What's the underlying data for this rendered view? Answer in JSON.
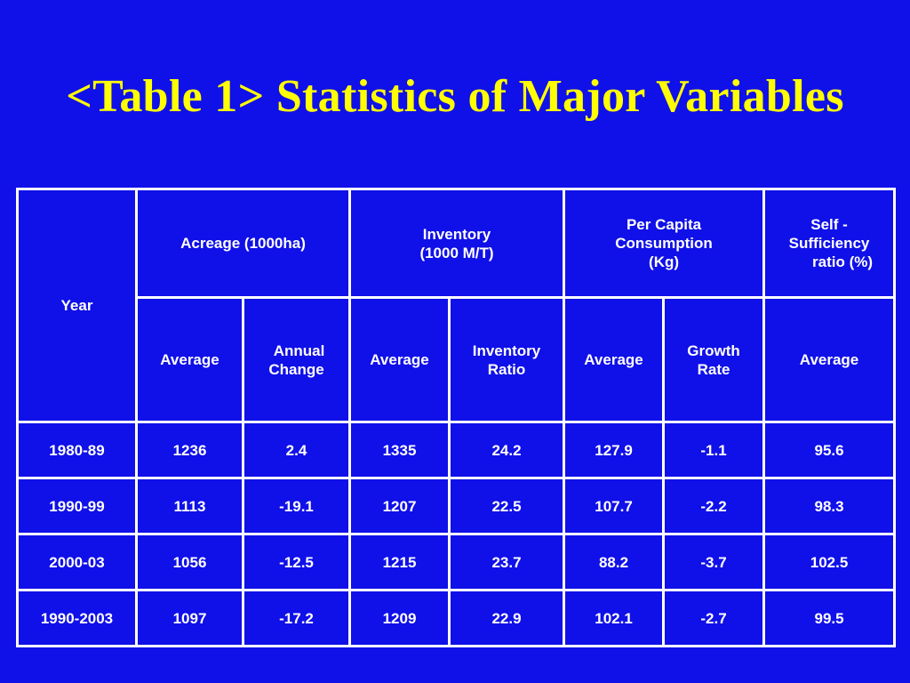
{
  "title": "<Table 1> Statistics of Major Variables",
  "table": {
    "year_header": "Year",
    "groups": {
      "acreage": "Acreage (1000ha)",
      "inventory": [
        "Inventory",
        "(1000 M/T)"
      ],
      "per_capita": [
        "Per Capita",
        "Consumption",
        "(Kg)"
      ],
      "self_sufficiency": [
        "Self -",
        "Sufficiency",
        "ratio (%)"
      ]
    },
    "subheaders": {
      "acreage_average": "Average",
      "annual_change": [
        "Annual",
        "Change"
      ],
      "inventory_average": "Average",
      "inventory_ratio": [
        "Inventory",
        "Ratio"
      ],
      "consumption_average": "Average",
      "growth_rate": [
        "Growth",
        "Rate"
      ],
      "self_sufficiency_average": "Average"
    },
    "rows": [
      [
        "1980-89",
        "1236",
        "2.4",
        "1335",
        "24.2",
        "127.9",
        "-1.1",
        "95.6"
      ],
      [
        "1990-99",
        "1113",
        "-19.1",
        "1207",
        "22.5",
        "107.7",
        "-2.2",
        "98.3"
      ],
      [
        "2000-03",
        "1056",
        "-12.5",
        "1215",
        "23.7",
        "88.2",
        "-3.7",
        "102.5"
      ],
      [
        "1990-2003",
        "1097",
        "-17.2",
        "1209",
        "22.9",
        "102.1",
        "-2.7",
        "99.5"
      ]
    ]
  },
  "colors": {
    "background": "#1010e8",
    "title": "#ffff00",
    "text": "#ffffff",
    "grid": "#ffffff"
  }
}
